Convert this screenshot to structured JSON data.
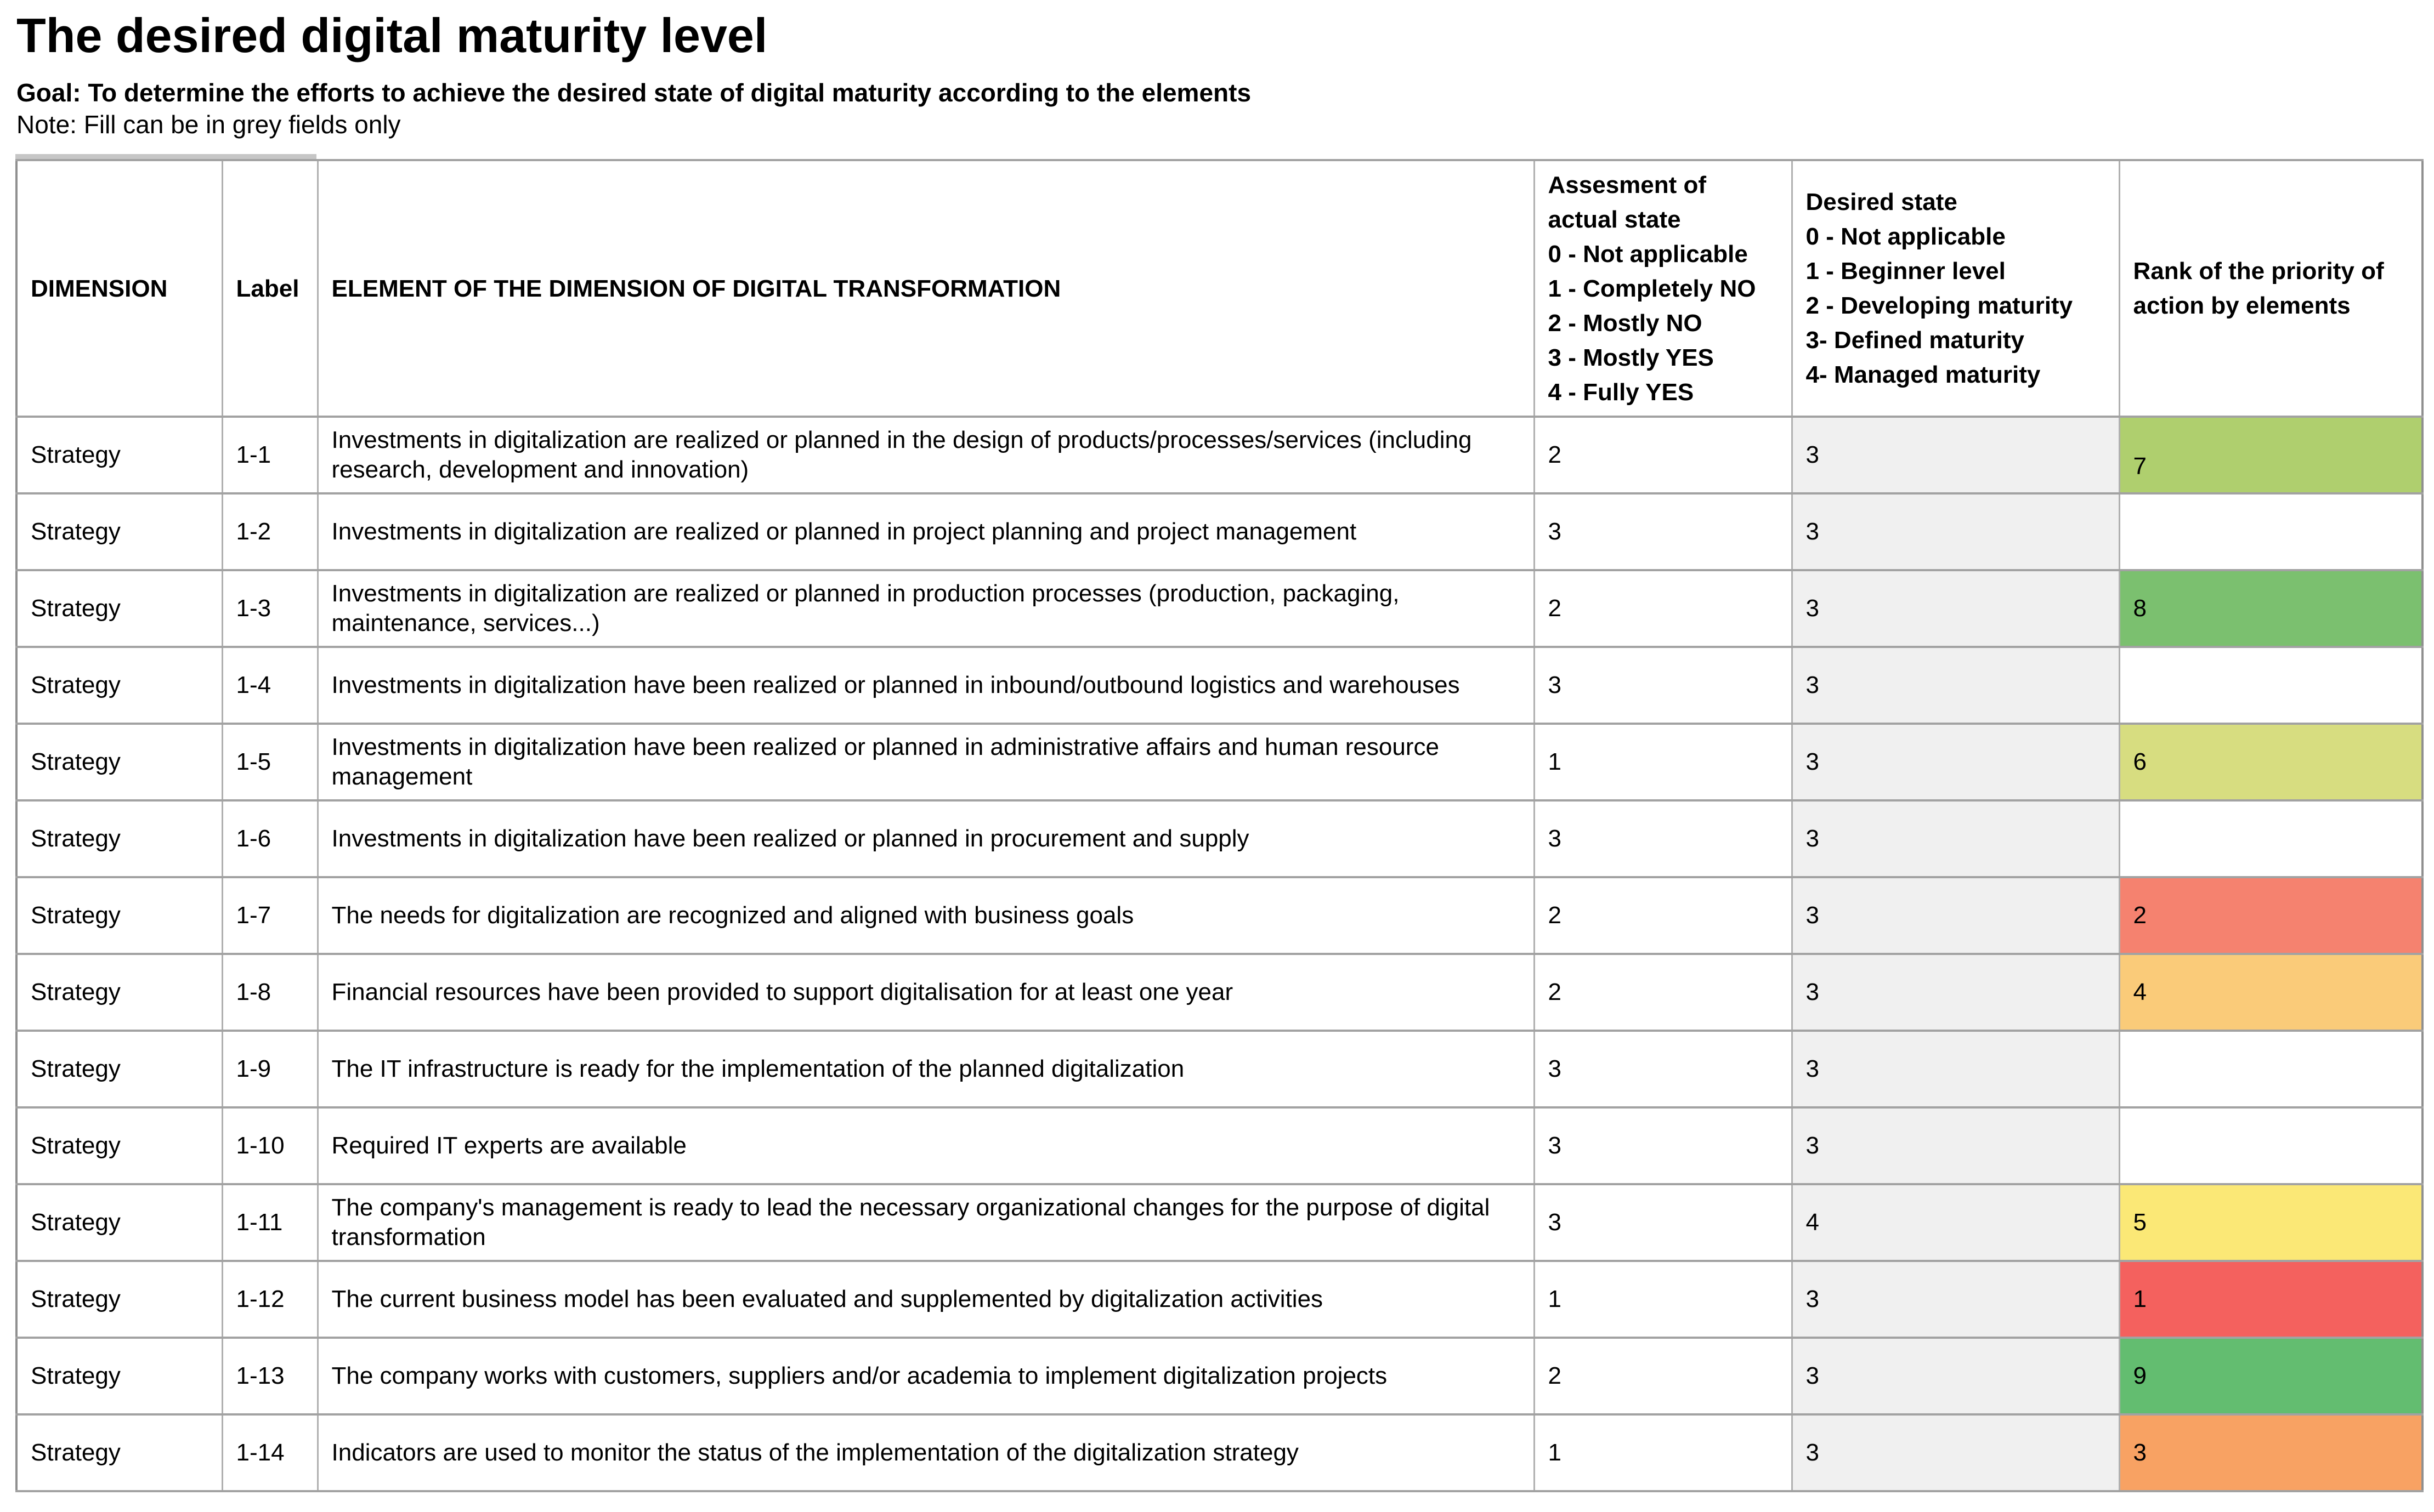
{
  "header_block": {
    "title": "The desired digital maturity level",
    "goal": "Goal: To determine the efforts to achieve the desired state of digital maturity according to the elements",
    "note": "Note: Fill can be in grey fields only"
  },
  "colors": {
    "desired_cell_fill": "#f0f0f0",
    "grid_line": "#a2a2a2",
    "rank_colors_by_value": {
      "1": "#f4615e",
      "2": "#f5826f",
      "3": "#f8a263",
      "4": "#facb79",
      "5": "#fbe876",
      "6": "#d7dd80",
      "7": "#afcf6e",
      "8": "#7bc06f",
      "9": "#63bd70"
    }
  },
  "table": {
    "headers": {
      "dimension": "DIMENSION",
      "label": "Label",
      "element": "ELEMENT OF THE DIMENSION OF DIGITAL TRANSFORMATION",
      "actual_lines": [
        "Assesment of actual state",
        "0 - Not applicable",
        "1 - Completely NO",
        "2 - Mostly NO",
        "3 - Mostly YES",
        "4 - Fully YES"
      ],
      "desired_lines": [
        "Desired state",
        "0 - Not applicable",
        "1 - Beginner level",
        "2 - Developing maturity",
        "3- Defined maturity",
        "4- Managed maturity"
      ],
      "rank": "Rank of the priority of action by elements"
    },
    "rows": [
      {
        "dimension": "Strategy",
        "label": "1-1",
        "element": "Investments in digitalization are realized or planned in the design of products/processes/services (including research, development and innovation)",
        "actual": "2",
        "desired": "3",
        "rank": "7",
        "rank_valign": "bottom"
      },
      {
        "dimension": "Strategy",
        "label": "1-2",
        "element": "Investments in digitalization are realized or planned in project planning and project management",
        "actual": "3",
        "desired": "3",
        "rank": ""
      },
      {
        "dimension": "Strategy",
        "label": "1-3",
        "element": "Investments in digitalization are realized or planned in production processes (production, packaging, maintenance, services...)",
        "actual": "2",
        "desired": "3",
        "rank": "8"
      },
      {
        "dimension": "Strategy",
        "label": "1-4",
        "element": "Investments in digitalization have been realized or planned in inbound/outbound logistics and warehouses",
        "actual": "3",
        "desired": "3",
        "rank": ""
      },
      {
        "dimension": "Strategy",
        "label": "1-5",
        "element": "Investments in digitalization have been realized or planned in administrative affairs and human resource management",
        "actual": "1",
        "desired": "3",
        "rank": "6"
      },
      {
        "dimension": "Strategy",
        "label": "1-6",
        "element": "Investments in digitalization have been realized or planned in procurement and supply",
        "actual": "3",
        "desired": "3",
        "rank": ""
      },
      {
        "dimension": "Strategy",
        "label": "1-7",
        "element": "The needs for digitalization are recognized and aligned with business goals",
        "actual": "2",
        "desired": "3",
        "rank": "2"
      },
      {
        "dimension": "Strategy",
        "label": "1-8",
        "element": "Financial resources have been provided to support digitalisation for at least one year",
        "actual": "2",
        "desired": "3",
        "rank": "4"
      },
      {
        "dimension": "Strategy",
        "label": "1-9",
        "element": "The IT infrastructure is ready for the implementation of the planned digitalization",
        "actual": "3",
        "desired": "3",
        "rank": ""
      },
      {
        "dimension": "Strategy",
        "label": "1-10",
        "element": "Required IT experts are available",
        "actual": "3",
        "desired": "3",
        "rank": ""
      },
      {
        "dimension": "Strategy",
        "label": "1-11",
        "element": "The company's management is ready to lead the necessary organizational changes for the purpose of digital transformation",
        "actual": "3",
        "desired": "4",
        "rank": "5"
      },
      {
        "dimension": "Strategy",
        "label": "1-12",
        "element": "The current business model has been evaluated and supplemented by digitalization activities",
        "actual": "1",
        "desired": "3",
        "rank": "1"
      },
      {
        "dimension": "Strategy",
        "label": "1-13",
        "element": "The company works with customers, suppliers and/or academia to implement digitalization projects",
        "actual": "2",
        "desired": "3",
        "rank": "9"
      },
      {
        "dimension": "Strategy",
        "label": "1-14",
        "element": "Indicators are used to monitor the status of the implementation of the digitalization strategy",
        "actual": "1",
        "desired": "3",
        "rank": "3"
      }
    ]
  }
}
